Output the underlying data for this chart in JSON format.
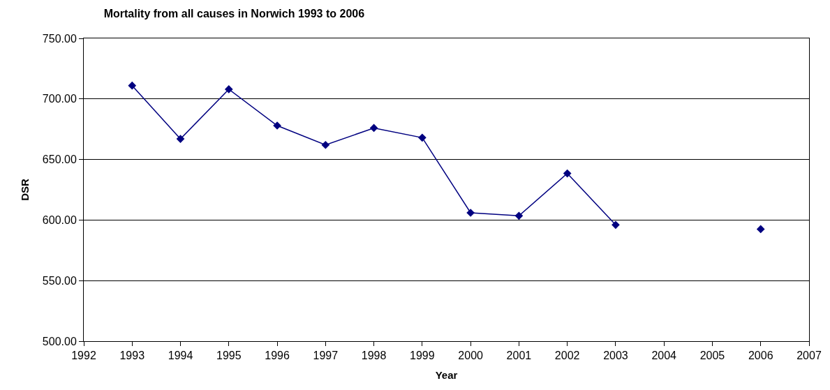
{
  "chart_data": {
    "type": "line",
    "title": "Mortality from all causes in Norwich 1993 to 2006",
    "xlabel": "Year",
    "ylabel": "DSR",
    "x": [
      1993,
      1994,
      1995,
      1996,
      1997,
      1998,
      1999,
      2000,
      2001,
      2002,
      2003,
      2004,
      2005,
      2006
    ],
    "series": [
      {
        "color": "#000080",
        "values": [
          711,
          667,
          708,
          678,
          662,
          676,
          668,
          606,
          603.5,
          638.5,
          596,
          null,
          null,
          592.5
        ]
      }
    ],
    "xlim": [
      1992,
      2007
    ],
    "xticks": [
      1992,
      1993,
      1994,
      1995,
      1996,
      1997,
      1998,
      1999,
      2000,
      2001,
      2002,
      2003,
      2004,
      2005,
      2006,
      2007
    ],
    "ylim": [
      500,
      750
    ],
    "yticks": [
      {
        "value": 500,
        "label": "500.00"
      },
      {
        "value": 550,
        "label": "550.00"
      },
      {
        "value": 600,
        "label": "600.00"
      },
      {
        "value": 650,
        "label": "650.00"
      },
      {
        "value": 700,
        "label": "700.00"
      },
      {
        "value": 750,
        "label": "750.00"
      }
    ],
    "grid": "y",
    "marker": "diamond",
    "line_style": "solid"
  }
}
